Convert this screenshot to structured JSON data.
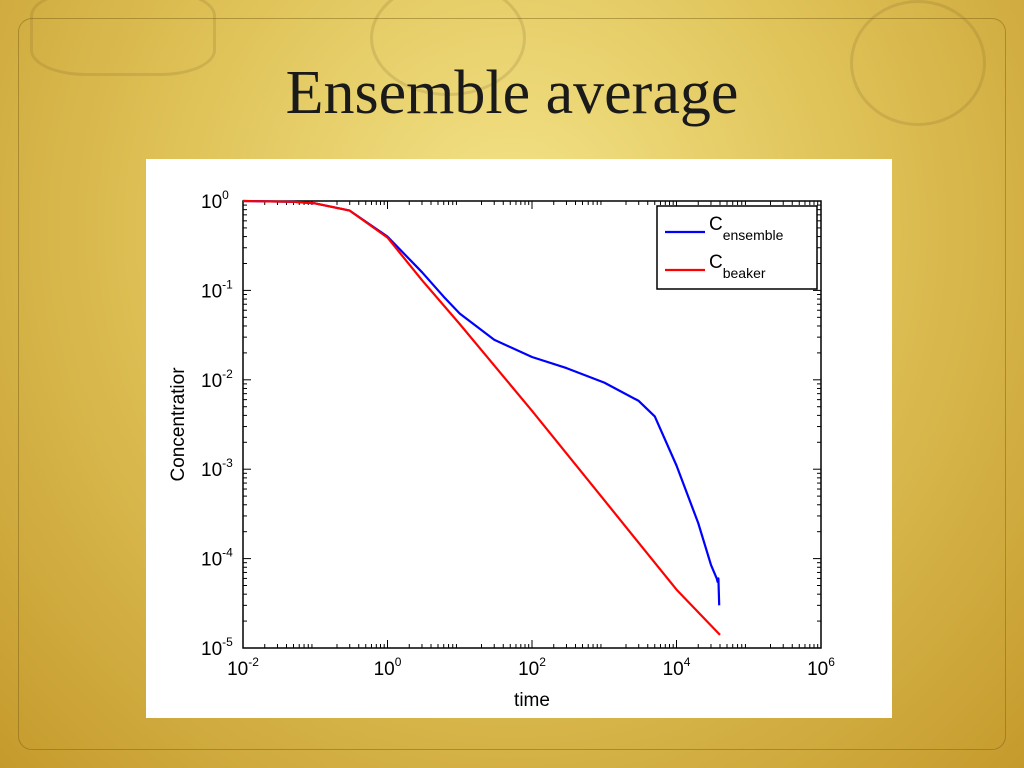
{
  "slide": {
    "title": "Ensemble average"
  },
  "chart_data": {
    "type": "line",
    "xscale": "log",
    "yscale": "log",
    "xlabel": "time",
    "ylabel": "Concentratior",
    "xlim": [
      0.01,
      1000000
    ],
    "ylim": [
      1e-05,
      1
    ],
    "xticks": [
      {
        "value": 0.01,
        "base": "10",
        "exp": "-2"
      },
      {
        "value": 1,
        "base": "10",
        "exp": "0"
      },
      {
        "value": 100,
        "base": "10",
        "exp": "2"
      },
      {
        "value": 10000,
        "base": "10",
        "exp": "4"
      },
      {
        "value": 1000000,
        "base": "10",
        "exp": "6"
      }
    ],
    "yticks": [
      {
        "value": 1,
        "base": "10",
        "exp": "0"
      },
      {
        "value": 0.1,
        "base": "10",
        "exp": "-1"
      },
      {
        "value": 0.01,
        "base": "10",
        "exp": "-2"
      },
      {
        "value": 0.001,
        "base": "10",
        "exp": "-3"
      },
      {
        "value": 0.0001,
        "base": "10",
        "exp": "-4"
      },
      {
        "value": 1e-05,
        "base": "10",
        "exp": "-5"
      }
    ],
    "legend_position": "top-right",
    "series": [
      {
        "name": "C",
        "subscript": "ensemble",
        "color": "#0000ff",
        "x": [
          0.01,
          0.05,
          0.1,
          0.3,
          1,
          3,
          6,
          10,
          30,
          100,
          300,
          1000,
          3000,
          5000,
          10000,
          20000,
          30000,
          36000,
          37000,
          38000,
          39000
        ],
        "y": [
          1,
          0.98,
          0.94,
          0.78,
          0.4,
          0.16,
          0.085,
          0.055,
          0.028,
          0.018,
          0.0135,
          0.0093,
          0.0058,
          0.0039,
          0.0011,
          0.00025,
          8.5e-05,
          6e-05,
          5.5e-05,
          6e-05,
          3e-05
        ]
      },
      {
        "name": "C",
        "subscript": "beaker",
        "color": "#ff0000",
        "x": [
          0.01,
          0.05,
          0.1,
          0.3,
          1,
          3,
          10,
          100,
          1000,
          10000,
          40000
        ],
        "y": [
          1,
          0.98,
          0.94,
          0.78,
          0.39,
          0.13,
          0.042,
          0.0045,
          0.00045,
          4.5e-05,
          1.4e-05
        ]
      }
    ]
  }
}
